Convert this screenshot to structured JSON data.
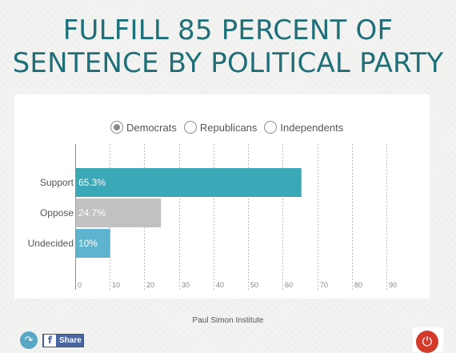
{
  "title_lines": [
    "FULFILL 85 PERCENT OF",
    "SENTENCE BY POLITICAL PARTY"
  ],
  "legend": {
    "options": [
      {
        "label": "Democrats",
        "selected": true
      },
      {
        "label": "Republicans",
        "selected": false
      },
      {
        "label": "Independents",
        "selected": false
      }
    ]
  },
  "chart_data": {
    "type": "bar",
    "orientation": "horizontal",
    "categories": [
      "Support",
      "Oppose",
      "Undecided"
    ],
    "values": [
      65.3,
      24.7,
      10
    ],
    "data_labels": [
      "65.3%",
      "24.7%",
      "10%"
    ],
    "colors": [
      "#3aa8b6",
      "#c1c1c1",
      "#5eb3cf"
    ],
    "xlim": [
      0,
      90
    ],
    "xticks": [
      0,
      10,
      20,
      30,
      40,
      50,
      60,
      70,
      80,
      90
    ],
    "grid": "vertical",
    "legend_position": "top"
  },
  "footer": {
    "credit": "Paul Simon Institute",
    "share_label": "Share",
    "fb_glyph": "f",
    "share_icon": "↷",
    "power_icon": "⏻"
  }
}
